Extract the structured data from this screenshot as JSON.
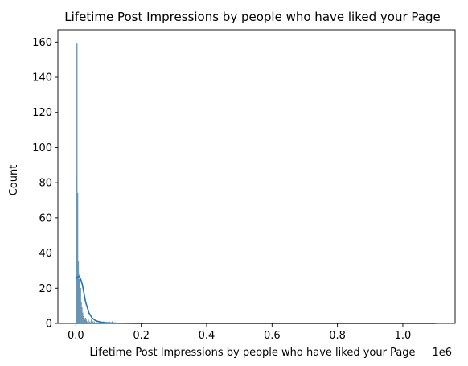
{
  "chart_data": {
    "type": "histogram",
    "title": "Lifetime Post Impressions by people who have liked your Page",
    "xlabel": "Lifetime Post Impressions by people who have liked your Page",
    "ylabel": "Count",
    "x_offset_label": "1e6",
    "xlim": [
      -55000,
      1160000
    ],
    "ylim": [
      0,
      167
    ],
    "x_ticks": [
      0,
      200000,
      400000,
      600000,
      800000,
      1000000
    ],
    "x_tick_labels": [
      "0.0",
      "0.2",
      "0.4",
      "0.6",
      "0.8",
      "1.0"
    ],
    "y_ticks": [
      0,
      20,
      40,
      60,
      80,
      100,
      120,
      140,
      160
    ],
    "y_tick_labels": [
      "0",
      "20",
      "40",
      "60",
      "80",
      "100",
      "120",
      "140",
      "160"
    ],
    "bin_width": 2200,
    "bins": [
      {
        "x": 0,
        "count": 83
      },
      {
        "x": 2200,
        "count": 159
      },
      {
        "x": 4400,
        "count": 74
      },
      {
        "x": 6600,
        "count": 35
      },
      {
        "x": 8800,
        "count": 25
      },
      {
        "x": 11000,
        "count": 28
      },
      {
        "x": 13200,
        "count": 20
      },
      {
        "x": 15400,
        "count": 12
      },
      {
        "x": 17600,
        "count": 9
      },
      {
        "x": 19800,
        "count": 6
      },
      {
        "x": 22000,
        "count": 4
      },
      {
        "x": 24200,
        "count": 3
      },
      {
        "x": 26400,
        "count": 2
      },
      {
        "x": 28600,
        "count": 3
      },
      {
        "x": 30800,
        "count": 2
      },
      {
        "x": 33000,
        "count": 1
      },
      {
        "x": 37400,
        "count": 2
      },
      {
        "x": 41800,
        "count": 1
      },
      {
        "x": 46200,
        "count": 2
      },
      {
        "x": 50600,
        "count": 1
      },
      {
        "x": 55000,
        "count": 1
      },
      {
        "x": 61600,
        "count": 1
      },
      {
        "x": 70400,
        "count": 1
      },
      {
        "x": 83600,
        "count": 1
      },
      {
        "x": 101200,
        "count": 1
      },
      {
        "x": 110000,
        "count": 1
      }
    ],
    "kde": {
      "x": [
        0,
        5000,
        10000,
        15000,
        20000,
        25000,
        30000,
        40000,
        50000,
        60000,
        70000,
        80000,
        100000,
        130000,
        180000,
        300000,
        1100000
      ],
      "y": [
        25,
        26.5,
        26.8,
        25,
        22,
        17,
        12,
        6,
        3,
        1.6,
        1.0,
        0.6,
        0.3,
        0.12,
        0.05,
        0.02,
        0
      ]
    },
    "colors": {
      "bar_fill": "#7ea6c4",
      "bar_stroke": "#5b87a8",
      "kde_line": "#1f77b4",
      "axis": "#000000"
    },
    "grid": false,
    "legend": "none"
  }
}
